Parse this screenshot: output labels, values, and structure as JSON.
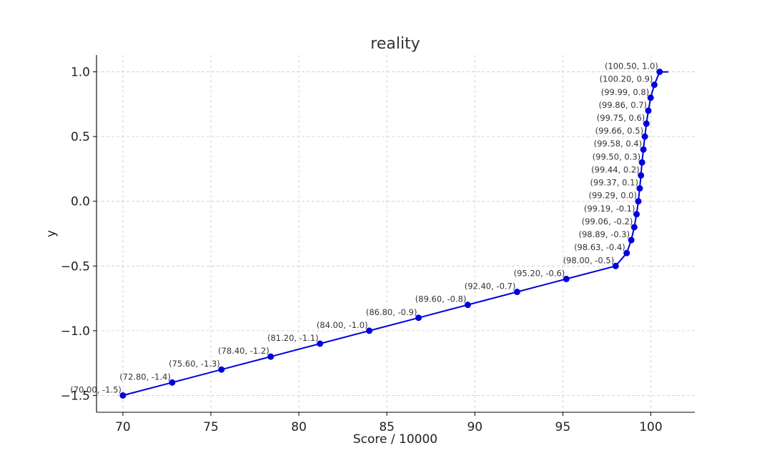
{
  "chart_data": {
    "type": "line",
    "title": "reality",
    "xlabel": "Score / 10000",
    "ylabel": "y",
    "xlim": [
      68.5,
      102.5
    ],
    "ylim": [
      -1.63,
      1.13
    ],
    "xticks": [
      70,
      75,
      80,
      85,
      90,
      95,
      100
    ],
    "xtick_labels": [
      "70",
      "75",
      "80",
      "85",
      "90",
      "95",
      "100"
    ],
    "yticks": [
      -1.5,
      -1.0,
      -0.5,
      0.0,
      0.5,
      1.0
    ],
    "ytick_labels": [
      "−1.5",
      "−1.0",
      "−0.5",
      "0.0",
      "0.5",
      "1.0"
    ],
    "grid": true,
    "line_color": "#0000dd",
    "point_color": "#0000dd",
    "line_extends_to_x": 101.0,
    "series": [
      {
        "x": [
          70.0,
          72.8,
          75.6,
          78.4,
          81.2,
          84.0,
          86.8,
          89.6,
          92.4,
          95.2,
          98.0,
          98.63,
          98.89,
          99.06,
          99.19,
          99.29,
          99.37,
          99.44,
          99.5,
          99.58,
          99.66,
          99.75,
          99.86,
          99.99,
          100.2,
          100.5
        ],
        "y": [
          -1.5,
          -1.4,
          -1.3,
          -1.2,
          -1.1,
          -1.0,
          -0.9,
          -0.8,
          -0.7,
          -0.6,
          -0.5,
          -0.4,
          -0.3,
          -0.2,
          -0.1,
          0.0,
          0.1,
          0.2,
          0.3,
          0.4,
          0.5,
          0.6,
          0.7,
          0.8,
          0.9,
          1.0
        ],
        "labels": [
          "(70.00, -1.5)",
          "(72.80, -1.4)",
          "(75.60, -1.3)",
          "(78.40, -1.2)",
          "(81.20, -1.1)",
          "(84.00, -1.0)",
          "(86.80, -0.9)",
          "(89.60, -0.8)",
          "(92.40, -0.7)",
          "(95.20, -0.6)",
          "(98.00, -0.5)",
          "(98.63, -0.4)",
          "(98.89, -0.3)",
          "(99.06, -0.2)",
          "(99.19, -0.1)",
          "(99.29, 0.0)",
          "(99.37, 0.1)",
          "(99.44, 0.2)",
          "(99.50, 0.3)",
          "(99.58, 0.4)",
          "(99.66, 0.5)",
          "(99.75, 0.6)",
          "(99.86, 0.7)",
          "(99.99, 0.8)",
          "(100.20, 0.9)",
          "(100.50, 1.0)"
        ]
      }
    ]
  }
}
